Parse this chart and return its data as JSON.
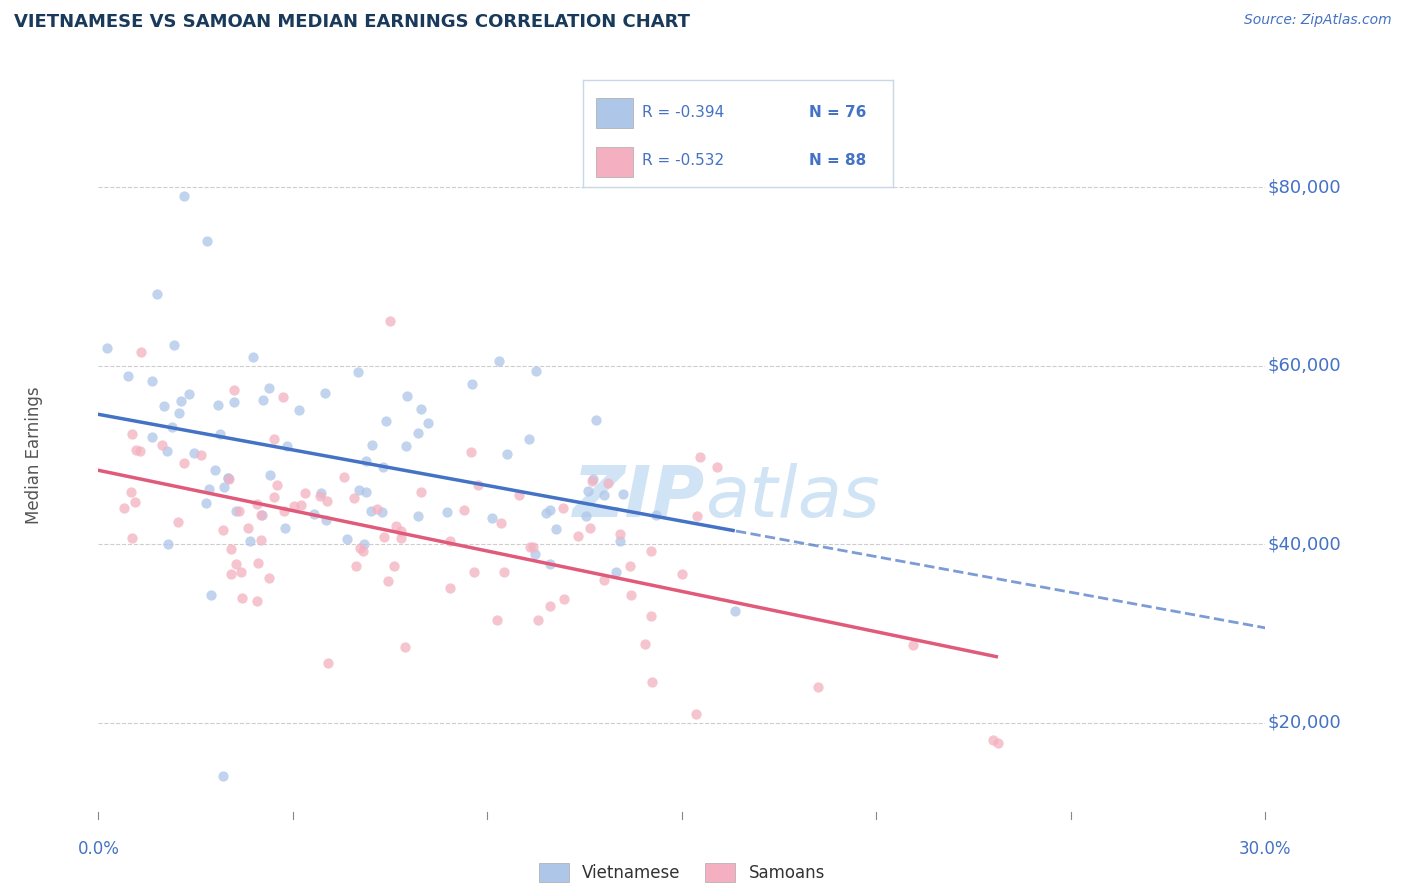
{
  "title": "VIETNAMESE VS SAMOAN MEDIAN EARNINGS CORRELATION CHART",
  "source_text": "Source: ZipAtlas.com",
  "ylabel": "Median Earnings",
  "y_ticks": [
    20000,
    40000,
    60000,
    80000
  ],
  "y_tick_labels": [
    "$20,000",
    "$40,000",
    "$60,000",
    "$80,000"
  ],
  "x_range": [
    0.0,
    30.0
  ],
  "y_range": [
    10000,
    90000
  ],
  "title_color": "#1a3a5c",
  "axis_color": "#4472c4",
  "blue_line_color": "#4472c4",
  "pink_line_color": "#e05a7a",
  "dot_blue": "#aec6e8",
  "dot_pink": "#f4b0c0",
  "grid_color": "#c8c8c8",
  "background_color": "#ffffff",
  "watermark_color": "#d0e4f5",
  "legend_border_color": "#c8d8e8",
  "blue_R": -0.394,
  "blue_N": 76,
  "pink_R": -0.532,
  "pink_N": 88,
  "blue_intercept": 53000,
  "blue_slope": -700,
  "blue_noise": 7000,
  "blue_seed": 15,
  "pink_intercept": 49000,
  "pink_slope": -900,
  "pink_noise": 6000,
  "pink_seed": 7,
  "x_min_viet": 0.2,
  "x_max_viet": 23.0,
  "x_min_sam": 0.2,
  "x_max_sam": 28.0
}
